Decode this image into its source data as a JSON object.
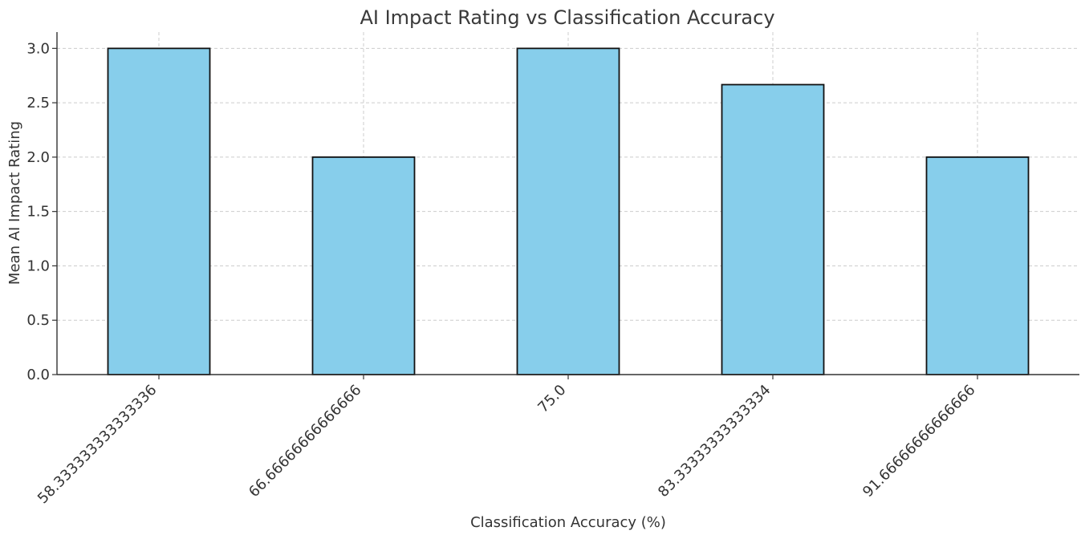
{
  "chart_data": {
    "type": "bar",
    "title": "AI Impact Rating vs Classification Accuracy",
    "xlabel": "Classification Accuracy (%)",
    "ylabel": "Mean AI Impact Rating",
    "categories": [
      "58.333333333333336",
      "66.66666666666666",
      "75.0",
      "83.33333333333334",
      "91.66666666666666"
    ],
    "values": [
      3.0,
      2.0,
      3.0,
      2.6667,
      2.0
    ],
    "ylim": [
      0,
      3.15
    ],
    "yticks": [
      "0.0",
      "0.5",
      "1.0",
      "1.5",
      "2.0",
      "2.5",
      "3.0"
    ],
    "grid": true,
    "bar_color": "#87CEEB",
    "edge_color": "#111111"
  }
}
